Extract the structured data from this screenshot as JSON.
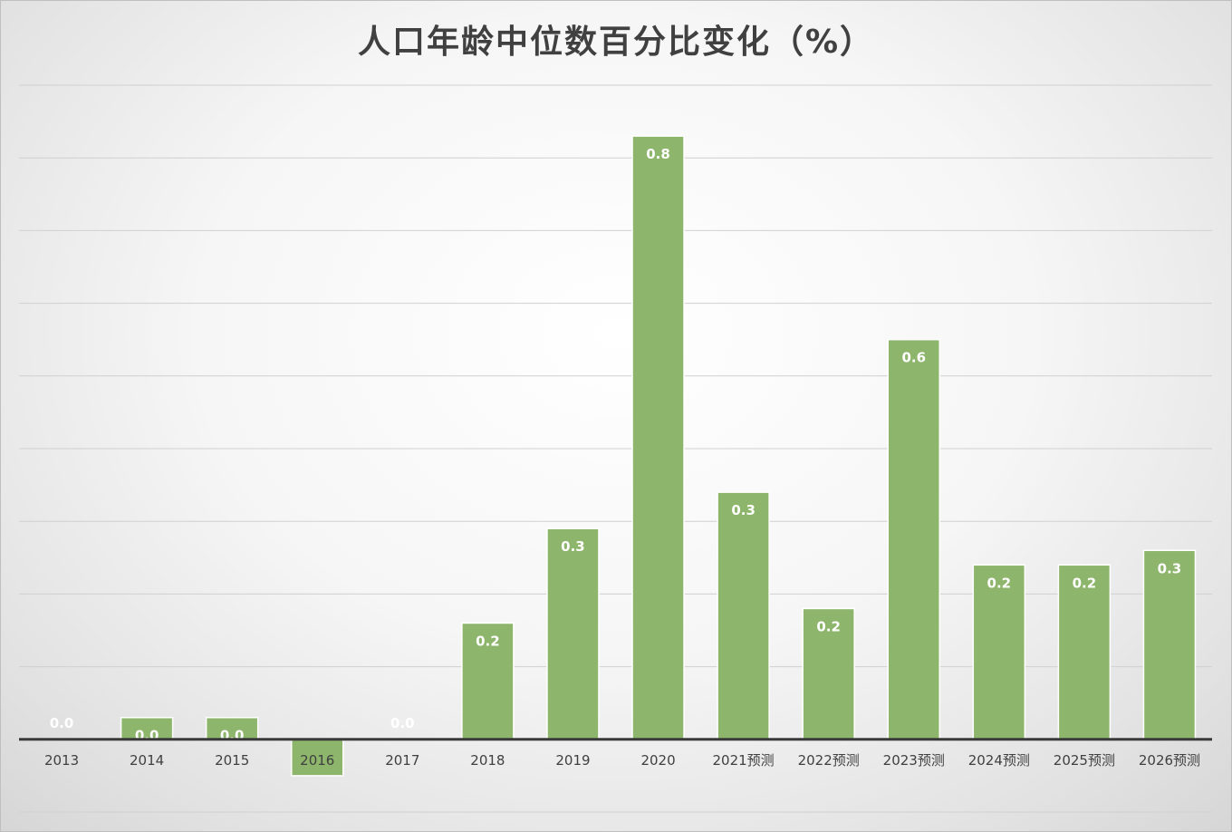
{
  "chart_data": {
    "type": "bar",
    "title": "人口年龄中位数百分比变化（%）",
    "xlabel": "",
    "ylabel": "",
    "categories": [
      "2013",
      "2014",
      "2015",
      "2016",
      "2017",
      "2018",
      "2019",
      "2020",
      "2021预测",
      "2022预测",
      "2023预测",
      "2024预测",
      "2025预测",
      "2026预测"
    ],
    "values": [
      0.0,
      0.03,
      0.03,
      -0.05,
      0.0,
      0.16,
      0.29,
      0.83,
      0.34,
      0.18,
      0.55,
      0.24,
      0.24,
      0.26
    ],
    "data_labels": [
      "0.0",
      "0.0",
      "0.0",
      "",
      "0.0",
      "0.2",
      "0.3",
      "0.8",
      "0.3",
      "0.2",
      "0.6",
      "0.2",
      "0.2",
      "0.3"
    ],
    "ylim": [
      -0.1,
      0.9
    ],
    "grid": true,
    "legend": "none",
    "colors": {
      "bar": "#8db56b",
      "axis": "#3a3a3a",
      "grid": "#d0d0d0"
    }
  }
}
